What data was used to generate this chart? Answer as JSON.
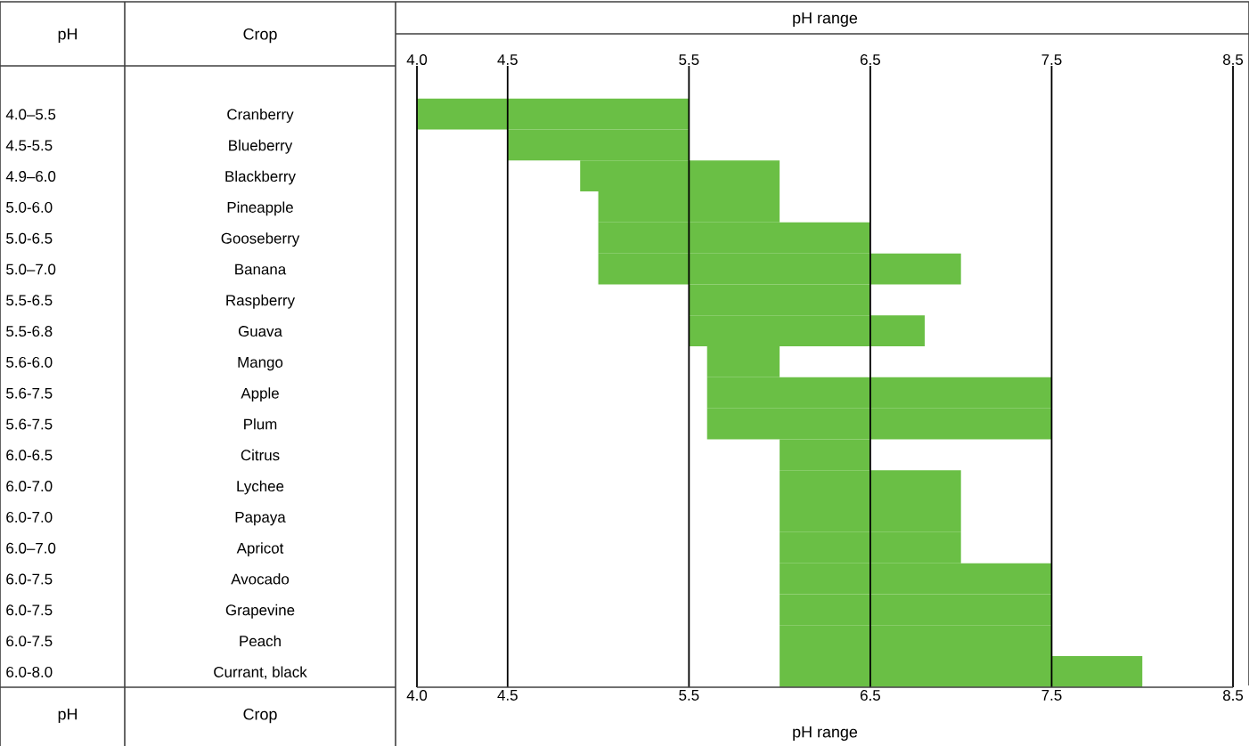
{
  "chart_data": {
    "type": "bar",
    "orientation": "horizontal",
    "categories": [
      "Cranberry",
      "Blueberry",
      "Blackberry",
      "Pineapple",
      "Gooseberry",
      "Banana",
      "Raspberry",
      "Guava",
      "Mango",
      "Apple",
      "Plum",
      "Citrus",
      "Lychee",
      "Papaya",
      "Apricot",
      "Avocado",
      "Grapevine",
      "Peach",
      "Currant, black"
    ],
    "base": [
      4.0,
      4.5,
      4.9,
      5.0,
      5.0,
      5.0,
      5.5,
      5.5,
      5.6,
      5.6,
      5.6,
      6.0,
      6.0,
      6.0,
      6.0,
      6.0,
      6.0,
      6.0,
      6.0
    ],
    "values": [
      1.5,
      1.0,
      1.1,
      1.0,
      1.5,
      2.0,
      1.0,
      1.3,
      0.4,
      1.9,
      1.9,
      0.5,
      1.0,
      1.0,
      1.0,
      1.5,
      1.5,
      1.5,
      2.0
    ],
    "value_labels": [
      "4.0–5.5",
      "4.5-5.5",
      "4.9–6.0",
      "5.0-6.0",
      "5.0-6.5",
      "5.0–7.0",
      "5.5-6.5",
      "5.5-6.8",
      "5.6-6.0",
      "5.6-7.5",
      "5.6-7.5",
      "6.0-6.5",
      "6.0-7.0",
      "6.0-7.0",
      "6.0–7.0",
      "6.0-7.5",
      "6.0-7.5",
      "6.0-7.5",
      "6.0-8.0"
    ],
    "color": "#6abf45",
    "xlabel": "pH range",
    "x2label": "pH range",
    "xlim": [
      4.0,
      8.5
    ],
    "xticks": [
      {
        "value": 4.0,
        "label": "4.0"
      },
      4.5,
      5.5,
      6.5,
      7.5,
      8.5
    ],
    "x2lim": [
      4.0,
      8.5
    ],
    "x2ticks": [
      {
        "value": 4.0,
        "label": "4.0"
      },
      4.5,
      5.5,
      6.5,
      7.5,
      8.5
    ],
    "grid": "x",
    "annotations": [
      "pH",
      "Crop",
      "pH",
      "Crop"
    ]
  }
}
